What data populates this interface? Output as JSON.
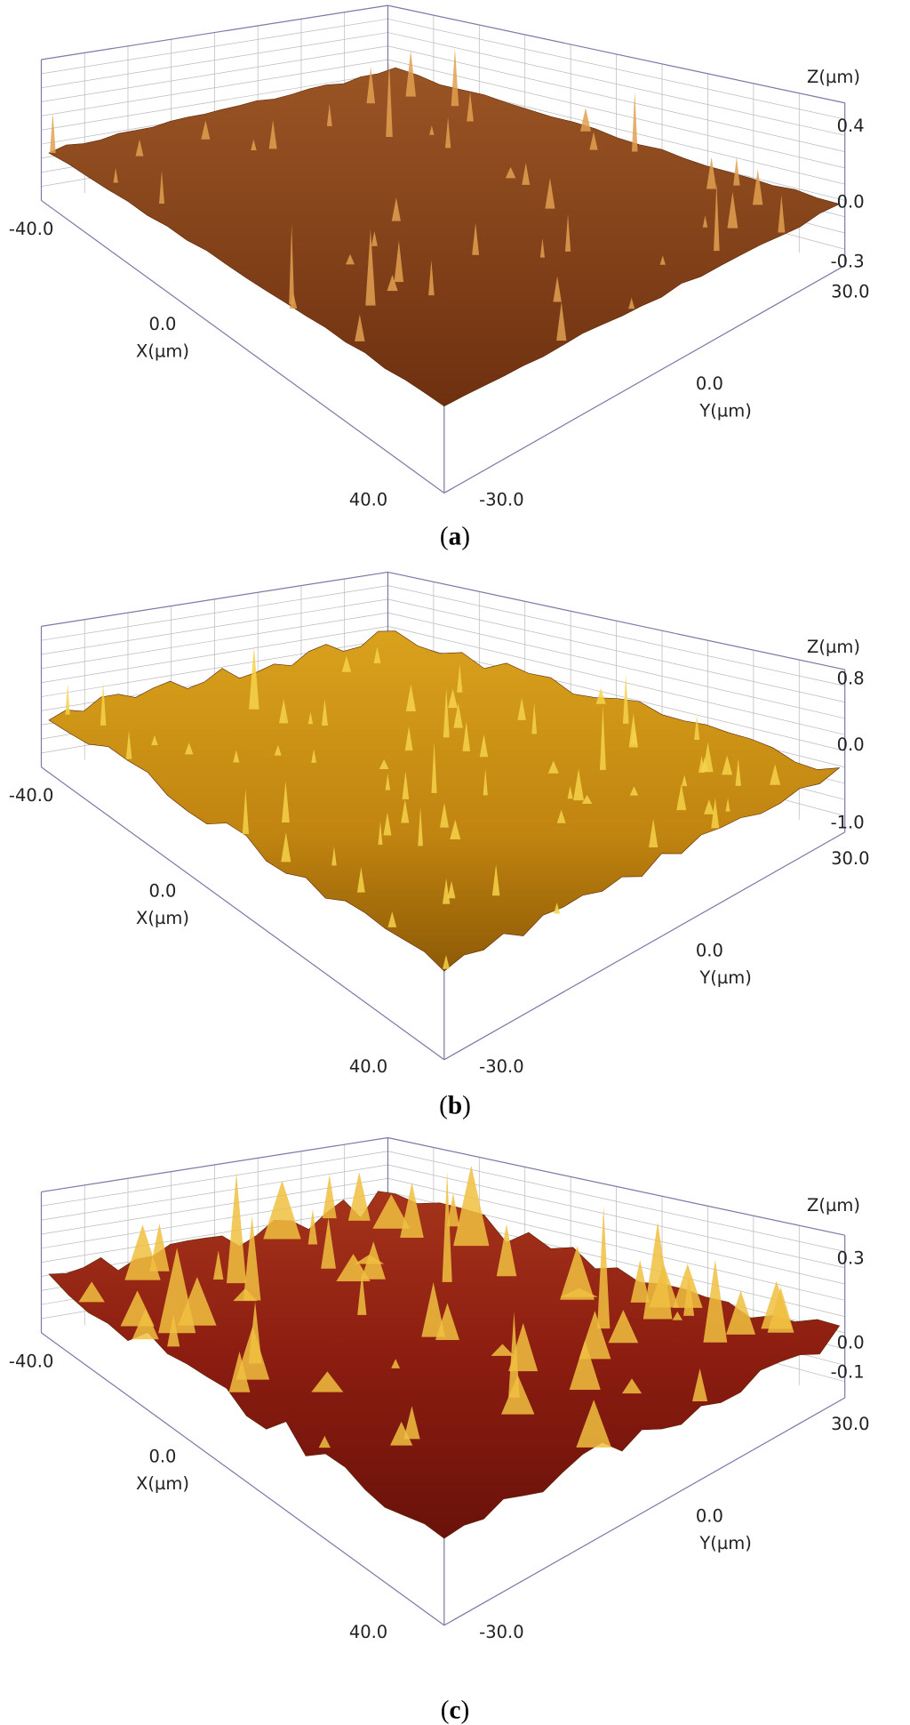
{
  "panels": [
    {
      "caption": {
        "open": "(",
        "letter": "a",
        "close": ")"
      },
      "z_label": "Z(µm)",
      "z_ticks": [
        "0.4",
        "0.0",
        "-0.3"
      ],
      "x_label": "X(µm)",
      "x_ticks": [
        "-40.0",
        "0.0",
        "40.0"
      ],
      "y_label": "Y(µm)",
      "y_ticks": [
        "-30.0",
        "0.0",
        "30.0"
      ]
    },
    {
      "caption": {
        "open": "(",
        "letter": "b",
        "close": ")"
      },
      "z_label": "Z(µm)",
      "z_ticks": [
        "0.8",
        "0.0",
        "-1.0"
      ],
      "x_label": "X(µm)",
      "x_ticks": [
        "-40.0",
        "0.0",
        "40.0"
      ],
      "y_label": "Y(µm)",
      "y_ticks": [
        "-30.0",
        "0.0",
        "30.0"
      ]
    },
    {
      "caption": {
        "open": "(",
        "letter": "c",
        "close": ")"
      },
      "z_label": "Z(µm)",
      "z_ticks": [
        "0.3",
        "0.0",
        "-0.1"
      ],
      "x_label": "X(µm)",
      "x_ticks": [
        "-40.0",
        "0.0",
        "40.0"
      ],
      "y_label": "Y(µm)",
      "y_ticks": [
        "-30.0",
        "0.0",
        "30.0"
      ]
    }
  ]
}
